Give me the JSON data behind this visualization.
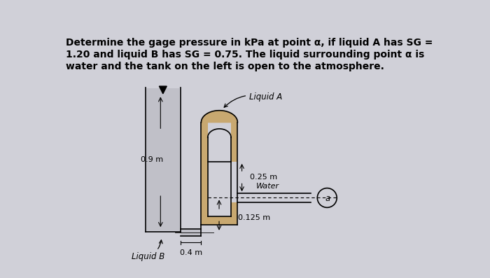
{
  "title_line1": "Determine the gage pressure in kPa at point α, if liquid A has SG =",
  "title_line2": "1.20 and liquid B has SG = 0.75. The liquid surrounding point α is",
  "title_line3": "water and the tank on the left is open to the atmosphere.",
  "bg_color": "#d0d0d8",
  "tank_fill_color": "#c0c0c8",
  "liquid_a_color": "#c8a870",
  "text_color": "#000000",
  "dim_09": "0.9 m",
  "dim_025": "0.25 m",
  "dim_0125": "0.125 m",
  "dim_04": "0.4 m",
  "label_liquid_a": "Liquid A",
  "label_liquid_b": "Liquid B",
  "label_water": "Water",
  "label_alpha": "a"
}
